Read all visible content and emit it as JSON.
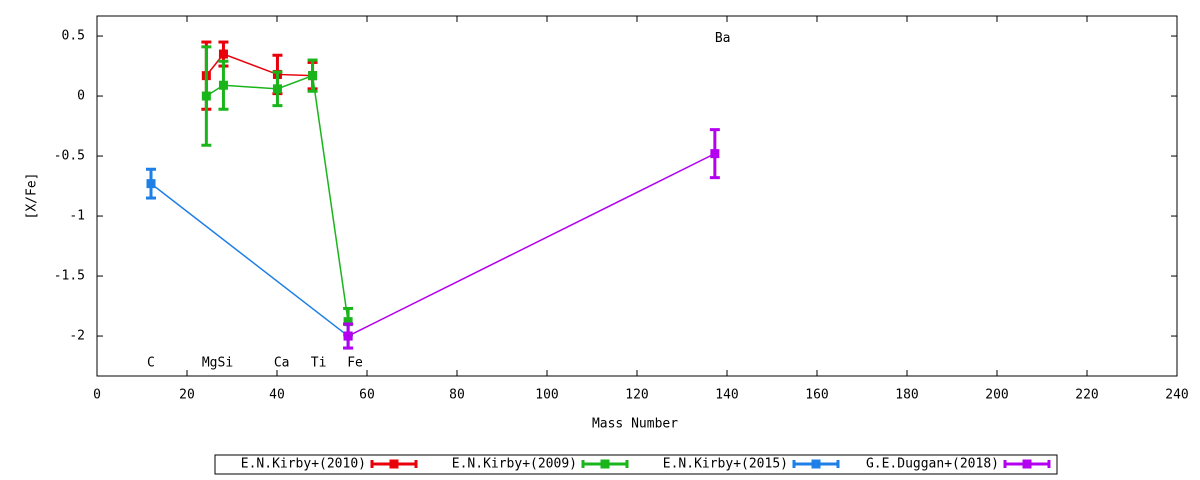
{
  "chart_data": {
    "type": "errorline",
    "xlabel": "Mass Number",
    "ylabel": "[X/Fe]",
    "xlim": [
      0,
      240
    ],
    "xticks": [
      0,
      20,
      40,
      60,
      80,
      100,
      120,
      140,
      160,
      180,
      200,
      220,
      240
    ],
    "ylim": [
      -2.333,
      0.667
    ],
    "yticks": [
      0.5,
      0,
      -0.5,
      -1,
      -1.5,
      -2
    ],
    "grid": false,
    "legend": "bottom",
    "series": [
      {
        "name": "E.N.Kirby+(2010)",
        "color": "#e8000b",
        "x": [
          24.3,
          28.1,
          40.1,
          47.9
        ],
        "values": [
          0.17,
          0.35,
          0.18,
          0.17
        ],
        "errors": [
          0.28,
          0.1,
          0.16,
          0.11
        ]
      },
      {
        "name": "E.N.Kirby+(2009)",
        "color": "#1ab51a",
        "x": [
          24.3,
          28.1,
          40.1,
          47.9,
          55.8
        ],
        "values": [
          0.0,
          0.09,
          0.06,
          0.17,
          -1.88
        ],
        "errors": [
          0.41,
          0.2,
          0.14,
          0.13,
          0.11
        ]
      },
      {
        "name": "E.N.Kirby+(2015)",
        "color": "#1e7fe6",
        "x": [
          12.0,
          55.8
        ],
        "values": [
          -0.73,
          -2.0
        ],
        "errors": [
          0.12,
          0.1
        ]
      },
      {
        "name": "G.E.Duggan+(2018)",
        "color": "#b400f0",
        "x": [
          55.8,
          137.3
        ],
        "values": [
          -2.0,
          -0.48
        ],
        "errors": [
          0.1,
          0.2
        ]
      }
    ],
    "annotations": [
      {
        "text": "C",
        "x": 11.1,
        "y": -2.225
      },
      {
        "text": "MgSi",
        "x": 23.3,
        "y": -2.225
      },
      {
        "text": "Ca",
        "x": 39.3,
        "y": -2.225
      },
      {
        "text": "Ti",
        "x": 47.5,
        "y": -2.225
      },
      {
        "text": "Fe",
        "x": 55.6,
        "y": -2.225
      },
      {
        "text": "Ba",
        "x": 137.3,
        "y": 0.48
      }
    ]
  }
}
